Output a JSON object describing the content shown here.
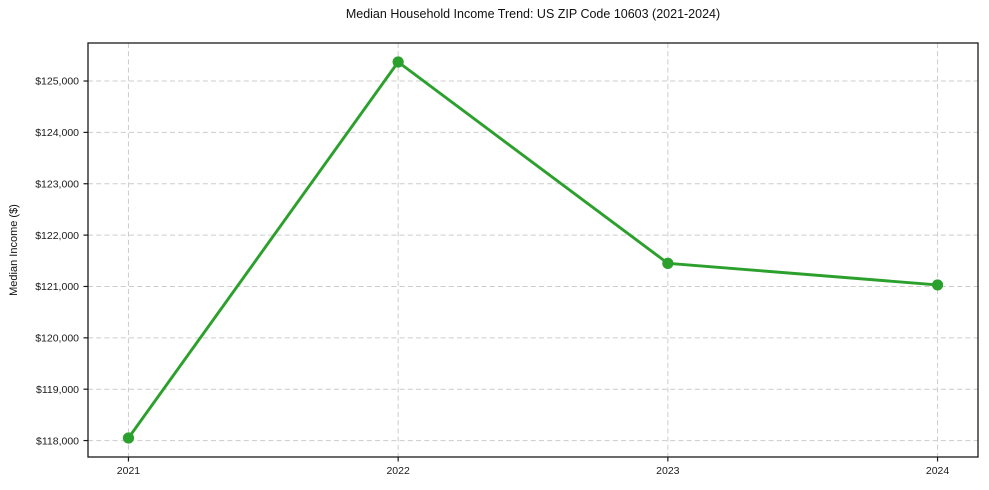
{
  "figure": {
    "title": "Median Household Income Trend: US ZIP Code 10603 (2021-2024)"
  },
  "chart_data": {
    "type": "line",
    "title": "Median Household Income Trend: US ZIP Code 10603 (2021-2024)",
    "xlabel": "",
    "ylabel": "Median Income ($)",
    "x": [
      2021,
      2022,
      2023,
      2024
    ],
    "values": [
      118050,
      125370,
      121450,
      121030
    ],
    "xtick_labels": [
      "2021",
      "2022",
      "2023",
      "2024"
    ],
    "yticks": [
      118000,
      119000,
      120000,
      121000,
      122000,
      123000,
      124000,
      125000
    ],
    "ytick_labels": [
      "$118,000",
      "$119,000",
      "$120,000",
      "$121,000",
      "$122,000",
      "$123,000",
      "$124,000",
      "$125,000"
    ],
    "xlim": [
      2020.85,
      2024.15
    ],
    "ylim": [
      117680,
      125740
    ],
    "grid": true,
    "grid_style": "dashed",
    "legend": null,
    "line_color": "#2ca02c",
    "marker": "circle",
    "marker_color": "#2ca02c",
    "grid_color": "#cccccc",
    "spine_color": "#1a1a1a",
    "background_color": "#ffffff"
  }
}
